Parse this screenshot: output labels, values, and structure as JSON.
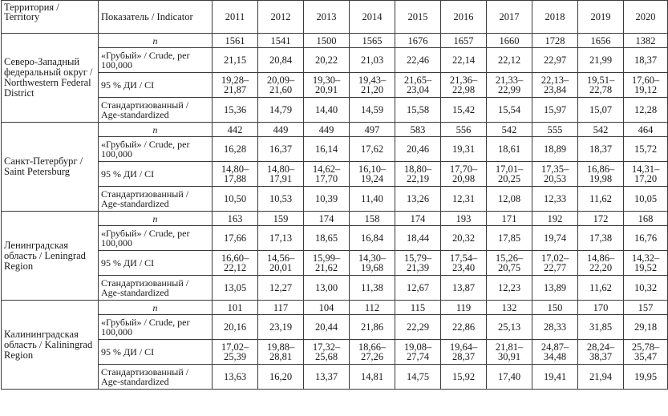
{
  "header": {
    "territory": "Территория / Territory",
    "indicator": "Показатель / Indicator",
    "years": [
      "2011",
      "2012",
      "2013",
      "2014",
      "2015",
      "2016",
      "2017",
      "2018",
      "2019",
      "2020"
    ]
  },
  "regions": [
    {
      "name": "Северо-Западный федеральный округ / Northwestern Federal District",
      "rows": [
        {
          "label": "n",
          "values": [
            "1561",
            "1541",
            "1500",
            "1565",
            "1676",
            "1657",
            "1660",
            "1728",
            "1656",
            "1382"
          ]
        },
        {
          "label": "«Грубый» / Crude, per 100,000",
          "values": [
            "21,15",
            "20,84",
            "20,22",
            "21,03",
            "22,46",
            "22,14",
            "22,12",
            "22,97",
            "21,99",
            "18,37"
          ]
        },
        {
          "label": "95 % ДИ / CI",
          "values": [
            [
              "19,28–",
              "21,87"
            ],
            [
              "20,09–",
              "21,60"
            ],
            [
              "19,30–",
              "20,91"
            ],
            [
              "19,43–",
              "21,20"
            ],
            [
              "21,65–",
              "23,04"
            ],
            [
              "21,36–",
              "22,98"
            ],
            [
              "21,33–",
              "22,99"
            ],
            [
              "22,13–",
              "23,84"
            ],
            [
              "19,51–",
              "22,78"
            ],
            [
              "17,60–",
              "19,12"
            ]
          ]
        },
        {
          "label": "Стандартизованный / Age-standardized",
          "values": [
            "15,36",
            "14,79",
            "14,40",
            "14,59",
            "15,58",
            "15,42",
            "15,54",
            "15,97",
            "15,07",
            "12,28"
          ]
        }
      ]
    },
    {
      "name": "Санкт-Петербург / Saint Petersburg",
      "rows": [
        {
          "label": "n",
          "values": [
            "442",
            "449",
            "449",
            "497",
            "583",
            "556",
            "542",
            "555",
            "542",
            "464"
          ]
        },
        {
          "label": "«Грубый» / Crude, per 100,000",
          "values": [
            "16,28",
            "16,37",
            "16,14",
            "17,62",
            "20,46",
            "19,31",
            "18,61",
            "18,89",
            "18,37",
            "15,72"
          ]
        },
        {
          "label": "95 % ДИ / CI",
          "values": [
            [
              "14,80–",
              "17,88"
            ],
            [
              "14,80–",
              "17,91"
            ],
            [
              "14,62–",
              "17,70"
            ],
            [
              "16,10–",
              "19,24"
            ],
            [
              "18,80–",
              "22,19"
            ],
            [
              "17,70–",
              "20,98"
            ],
            [
              "17,01–",
              "20,25"
            ],
            [
              "17,35–",
              "20,53"
            ],
            [
              "16,86–",
              "19,98"
            ],
            [
              "14,31–",
              "17,20"
            ]
          ]
        },
        {
          "label": "Стандартизованный / Age-standardized",
          "values": [
            "10,50",
            "10,53",
            "10,39",
            "11,40",
            "13,26",
            "12,31",
            "12,08",
            "12,33",
            "11,62",
            "10,05"
          ]
        }
      ]
    },
    {
      "name": "Ленинградская область / Leningrad Region",
      "rows": [
        {
          "label": "n",
          "values": [
            "163",
            "159",
            "174",
            "158",
            "174",
            "193",
            "171",
            "192",
            "172",
            "168"
          ]
        },
        {
          "label": "«Грубый» / Crude, per 100,000",
          "values": [
            "17,66",
            "17,13",
            "18,65",
            "16,84",
            "18,44",
            "20,32",
            "17,85",
            "19,74",
            "17,38",
            "16,76"
          ]
        },
        {
          "label": "95 % ДИ / CI",
          "values": [
            [
              "16,60–",
              "22,12"
            ],
            [
              "14,56–",
              "20,01"
            ],
            [
              "15,99–",
              "21,62"
            ],
            [
              "14,30–",
              "19,68"
            ],
            [
              "15,79–",
              "21,39"
            ],
            [
              "17,54–",
              "23,40"
            ],
            [
              "15,26–",
              "20,75"
            ],
            [
              "17,02–",
              "22,77"
            ],
            [
              "14,86–",
              "22,20"
            ],
            [
              "14,32–",
              "19,52"
            ]
          ]
        },
        {
          "label": "Стандартизованный / Age-standardized",
          "values": [
            "13,05",
            "12,27",
            "13,00",
            "11,38",
            "12,67",
            "13,87",
            "12,23",
            "13,89",
            "11,62",
            "10,32"
          ]
        }
      ]
    },
    {
      "name": "Калининградская область / Kaliningrad Region",
      "rows": [
        {
          "label": "n",
          "values": [
            "101",
            "117",
            "104",
            "112",
            "115",
            "119",
            "132",
            "150",
            "170",
            "157"
          ]
        },
        {
          "label": "«Грубый» / Crude, per 100,000",
          "values": [
            "20,16",
            "23,19",
            "20,44",
            "21,86",
            "22,29",
            "22,86",
            "25,13",
            "28,33",
            "31,85",
            "29,18"
          ]
        },
        {
          "label": "95 % ДИ / CI",
          "values": [
            [
              "17,02–",
              "25,39"
            ],
            [
              "19,88–",
              "28,81"
            ],
            [
              "17,32–",
              "25,68"
            ],
            [
              "18,66–",
              "27,26"
            ],
            [
              "19,08–",
              "27,74"
            ],
            [
              "19,64–",
              "28,37"
            ],
            [
              "21,81–",
              "30,91"
            ],
            [
              "24,87–",
              "34,48"
            ],
            [
              "28,24–",
              "38,37"
            ],
            [
              "25,78–",
              "35,47"
            ]
          ]
        },
        {
          "label": "Стандартизованный / Age-standardized",
          "values": [
            "13,63",
            "16,20",
            "13,37",
            "14,81",
            "14,75",
            "15,92",
            "17,40",
            "19,41",
            "21,94",
            "19,95"
          ]
        }
      ]
    }
  ]
}
